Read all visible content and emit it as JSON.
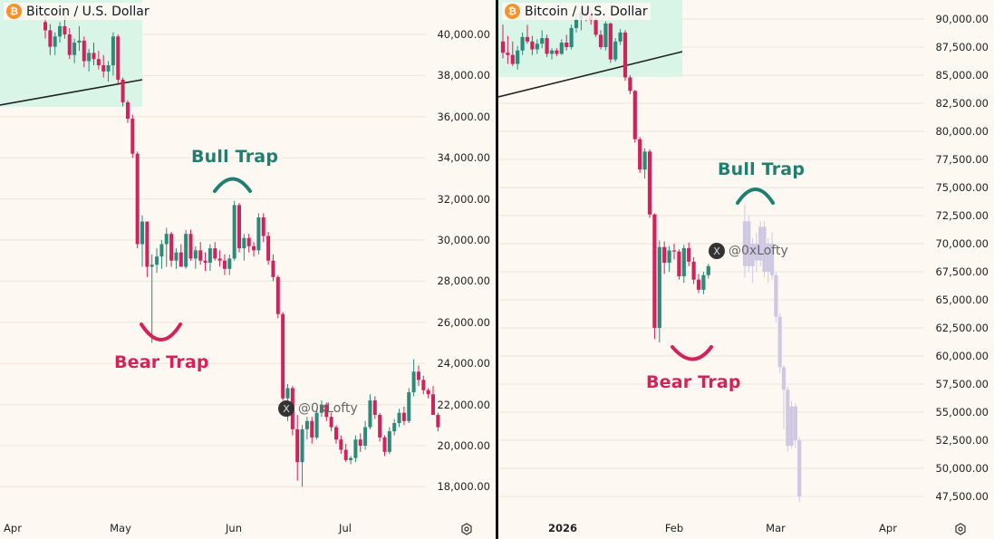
{
  "colors": {
    "background": "#fdf8f1",
    "up": "#2b8a78",
    "down": "#d1225c",
    "zone": "#d9f5e7",
    "grid": "#ece6dc",
    "projection": "#cfc8e3",
    "bull_label": "#1f8070",
    "bear_label": "#d4225a"
  },
  "left": {
    "title": "Bitcoin / U.S. Dollar",
    "icon": "bitcoin-icon",
    "watermark": "@0xLofty",
    "annotations": {
      "bull": "Bull Trap",
      "bear": "Bear Trap"
    },
    "y_labels": [
      "40,000.00",
      "38,000.00",
      "36,000.00",
      "34,000.00",
      "32,000.00",
      "30,000.00",
      "28,000.00",
      "26,000.00",
      "24,000.00",
      "22,000.00",
      "20,000.00",
      "18,000.00"
    ],
    "x_labels": [
      "Apr",
      "May",
      "Jun",
      "Jul"
    ]
  },
  "right": {
    "title": "Bitcoin / U.S. Dollar",
    "icon": "bitcoin-icon",
    "watermark": "@0xLofty",
    "annotations": {
      "bull": "Bull Trap",
      "bear": "Bear Trap"
    },
    "y_labels": [
      "90,000.00",
      "87,500.00",
      "85,000.00",
      "82,500.00",
      "80,000.00",
      "77,500.00",
      "75,000.00",
      "72,500.00",
      "70,000.00",
      "67,500.00",
      "65,000.00",
      "62,500.00",
      "60,000.00",
      "57,500.00",
      "55,000.00",
      "52,500.00",
      "50,000.00",
      "47,500.00"
    ],
    "x_labels": [
      "2026",
      "Feb",
      "Mar",
      "Apr"
    ]
  },
  "chart_data": [
    {
      "type": "candlestick",
      "title": "Bitcoin / U.S. Dollar",
      "x_ticks": [
        "Apr",
        "May",
        "Jun",
        "Jul"
      ],
      "ylim": [
        17000,
        41000
      ],
      "annotations": [
        "Bull Trap",
        "Bear Trap",
        "@0xLofty"
      ],
      "pattern": "ascending support breakdown, bear trap near 25,000, bull trap near 32,000, drop to ~19,000",
      "candles": [
        [
          40600,
          41000,
          39800,
          40200
        ],
        [
          40200,
          40500,
          39000,
          39400
        ],
        [
          39400,
          40100,
          39000,
          39900
        ],
        [
          39900,
          40600,
          39600,
          40400
        ],
        [
          40400,
          40900,
          39800,
          40000
        ],
        [
          40000,
          40300,
          38800,
          39000
        ],
        [
          39000,
          39800,
          38600,
          39600
        ],
        [
          39600,
          40400,
          39200,
          39700
        ],
        [
          39700,
          39900,
          38400,
          38700
        ],
        [
          38700,
          39300,
          38200,
          39100
        ],
        [
          39100,
          39600,
          38500,
          38800
        ],
        [
          38800,
          39200,
          38300,
          38500
        ],
        [
          38500,
          39000,
          37900,
          38200
        ],
        [
          38200,
          38700,
          37700,
          38500
        ],
        [
          38500,
          40100,
          38000,
          39900
        ],
        [
          39900,
          40000,
          37600,
          37800
        ],
        [
          37800,
          37900,
          36500,
          36700
        ],
        [
          36700,
          36800,
          35700,
          35900
        ],
        [
          35900,
          36100,
          34000,
          34200
        ],
        [
          34200,
          34300,
          29600,
          29800
        ],
        [
          29800,
          31200,
          28700,
          30900
        ],
        [
          30900,
          30900,
          28200,
          28700
        ],
        [
          28700,
          29300,
          25000,
          28800
        ],
        [
          28800,
          29600,
          28400,
          29200
        ],
        [
          29200,
          30000,
          28600,
          29800
        ],
        [
          29800,
          30600,
          28700,
          30300
        ],
        [
          30300,
          30400,
          28700,
          29000
        ],
        [
          29000,
          29600,
          28600,
          29400
        ],
        [
          29400,
          29800,
          28800,
          28700
        ],
        [
          28700,
          30500,
          28600,
          30300
        ],
        [
          30300,
          30500,
          29000,
          29100
        ],
        [
          29100,
          29700,
          28600,
          29500
        ],
        [
          29500,
          29900,
          28800,
          29000
        ],
        [
          29000,
          29400,
          28500,
          28900
        ],
        [
          28900,
          29800,
          28500,
          29600
        ],
        [
          29600,
          29900,
          29000,
          29100
        ],
        [
          29100,
          29500,
          28700,
          29000
        ],
        [
          29000,
          29300,
          28300,
          28600
        ],
        [
          28600,
          29300,
          28300,
          29100
        ],
        [
          29100,
          31900,
          29000,
          31700
        ],
        [
          31700,
          31800,
          29400,
          29600
        ],
        [
          29600,
          30300,
          29000,
          30100
        ],
        [
          30100,
          30300,
          29400,
          29700
        ],
        [
          29700,
          29900,
          29200,
          29500
        ],
        [
          29500,
          31300,
          29300,
          31100
        ],
        [
          31100,
          31300,
          29900,
          30200
        ],
        [
          30200,
          30400,
          28800,
          29000
        ],
        [
          29000,
          29300,
          28000,
          28200
        ],
        [
          28200,
          28300,
          26200,
          26400
        ],
        [
          26400,
          26500,
          22200,
          22300
        ],
        [
          22300,
          23000,
          21200,
          22800
        ],
        [
          22800,
          22900,
          20500,
          20800
        ],
        [
          20800,
          21500,
          18300,
          19200
        ],
        [
          19200,
          21000,
          18000,
          20800
        ],
        [
          20800,
          21400,
          20300,
          21200
        ],
        [
          21200,
          21400,
          20100,
          20400
        ],
        [
          20400,
          21800,
          20300,
          21600
        ],
        [
          21600,
          22200,
          21400,
          22000
        ],
        [
          22000,
          22100,
          21200,
          21400
        ],
        [
          21400,
          21600,
          20700,
          20900
        ],
        [
          20900,
          21000,
          20100,
          20300
        ],
        [
          20300,
          20500,
          19600,
          19800
        ],
        [
          19800,
          20100,
          19200,
          19300
        ],
        [
          19300,
          19500,
          19100,
          19400
        ],
        [
          19400,
          20500,
          19200,
          20300
        ],
        [
          20300,
          20600,
          19700,
          20000
        ],
        [
          20000,
          21200,
          19800,
          20900
        ],
        [
          20900,
          22500,
          20800,
          22200
        ],
        [
          22200,
          22400,
          21300,
          21500
        ],
        [
          21500,
          21600,
          20200,
          20400
        ],
        [
          20400,
          20500,
          19500,
          19700
        ],
        [
          19700,
          20900,
          19600,
          20700
        ],
        [
          20700,
          21300,
          20500,
          21100
        ],
        [
          21100,
          21800,
          20900,
          21600
        ],
        [
          21600,
          21900,
          21000,
          21200
        ],
        [
          21200,
          22800,
          21100,
          22600
        ],
        [
          22600,
          24200,
          22400,
          23600
        ],
        [
          23600,
          23900,
          22900,
          23200
        ],
        [
          23200,
          23400,
          22500,
          22700
        ],
        [
          22700,
          22800,
          22300,
          22500
        ],
        [
          22500,
          22900,
          21700,
          21500
        ],
        [
          21500,
          21600,
          20700,
          20900
        ]
      ]
    },
    {
      "type": "candlestick",
      "title": "Bitcoin / U.S. Dollar",
      "x_ticks": [
        "2026",
        "Feb",
        "Mar",
        "Apr"
      ],
      "ylim": [
        47000,
        91000
      ],
      "annotations": [
        "Bull Trap",
        "Bear Trap",
        "@0xLofty"
      ],
      "pattern": "ascending support breakdown, bear trap near 62,000, bull trap near 72,500, projected fractal drop to ~47,000",
      "candles": [
        [
          88000,
          89500,
          86500,
          87000
        ],
        [
          87000,
          88500,
          86000,
          86800
        ],
        [
          86800,
          88000,
          85800,
          86000
        ],
        [
          86000,
          87600,
          85500,
          87200
        ],
        [
          87200,
          88800,
          86800,
          88400
        ],
        [
          88400,
          89500,
          87800,
          88000
        ],
        [
          88000,
          88500,
          86800,
          87300
        ],
        [
          87300,
          88200,
          86900,
          87800
        ],
        [
          87800,
          89000,
          87400,
          88300
        ],
        [
          88300,
          88600,
          86600,
          86900
        ],
        [
          86900,
          87400,
          86400,
          87200
        ],
        [
          87200,
          87400,
          86700,
          86900
        ],
        [
          86900,
          88200,
          86800,
          87900
        ],
        [
          87900,
          88600,
          87200,
          87500
        ],
        [
          87500,
          89500,
          87300,
          89200
        ],
        [
          89200,
          90500,
          88800,
          90000
        ],
        [
          90000,
          91000,
          89000,
          90600
        ],
        [
          90600,
          91200,
          89800,
          90300
        ],
        [
          90300,
          90800,
          89500,
          89900
        ],
        [
          89900,
          90200,
          88400,
          88600
        ],
        [
          88600,
          89000,
          87300,
          87500
        ],
        [
          87500,
          89800,
          87200,
          89600
        ],
        [
          89600,
          89700,
          86100,
          86400
        ],
        [
          86400,
          88300,
          86200,
          88000
        ],
        [
          88000,
          89100,
          87700,
          88800
        ],
        [
          88800,
          89000,
          84500,
          84800
        ],
        [
          84800,
          85000,
          83300,
          83600
        ],
        [
          83600,
          83700,
          79000,
          79300
        ],
        [
          79300,
          79500,
          76300,
          76600
        ],
        [
          76600,
          78500,
          75800,
          78200
        ],
        [
          78200,
          78400,
          72300,
          72600
        ],
        [
          72600,
          72700,
          61500,
          62500
        ],
        [
          62500,
          70300,
          61200,
          69700
        ],
        [
          69700,
          70200,
          67300,
          68300
        ],
        [
          68300,
          69800,
          67500,
          69400
        ],
        [
          69400,
          70000,
          68600,
          69300
        ],
        [
          69300,
          69500,
          66800,
          67100
        ],
        [
          67100,
          69900,
          66500,
          69600
        ],
        [
          69600,
          70100,
          68000,
          68400
        ],
        [
          68400,
          68800,
          66400,
          66800
        ],
        [
          66800,
          67300,
          65600,
          65900
        ],
        [
          65900,
          67500,
          65500,
          67200
        ],
        [
          67200,
          68200,
          66900,
          68000
        ]
      ],
      "projection": [
        [
          68000,
          73500,
          67000,
          72000
        ],
        [
          72000,
          72500,
          67500,
          68000
        ],
        [
          68000,
          70500,
          66500,
          70000
        ],
        [
          70000,
          71000,
          67500,
          68500
        ],
        [
          68500,
          72000,
          68000,
          71500
        ],
        [
          71500,
          72000,
          67000,
          67500
        ],
        [
          67500,
          70500,
          66500,
          70000
        ],
        [
          70000,
          71000,
          66800,
          67200
        ],
        [
          67200,
          67500,
          63000,
          63500
        ],
        [
          63500,
          63800,
          58500,
          59000
        ],
        [
          59000,
          59200,
          53500,
          57000
        ],
        [
          57000,
          57300,
          51500,
          52000
        ],
        [
          52000,
          56000,
          51800,
          55500
        ],
        [
          55500,
          55800,
          51800,
          52500
        ],
        [
          52500,
          52800,
          47000,
          47500
        ]
      ]
    }
  ]
}
